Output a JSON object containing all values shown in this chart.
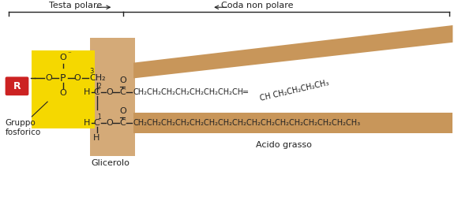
{
  "bg_color": "#ffffff",
  "yellow_bg": "#F5D800",
  "tan_bg": "#C8965A",
  "tan_light": "#DDB882",
  "tan_gly": "#D4AA78",
  "red_R": "#CC2222",
  "text_color": "#222222",
  "title_label1": "Testa polare",
  "title_label2": "Coda non polare",
  "label_gruppo": "Gruppo\nfosforico",
  "label_glicerolo": "Glicerolo",
  "label_acido": "Acido grasso"
}
